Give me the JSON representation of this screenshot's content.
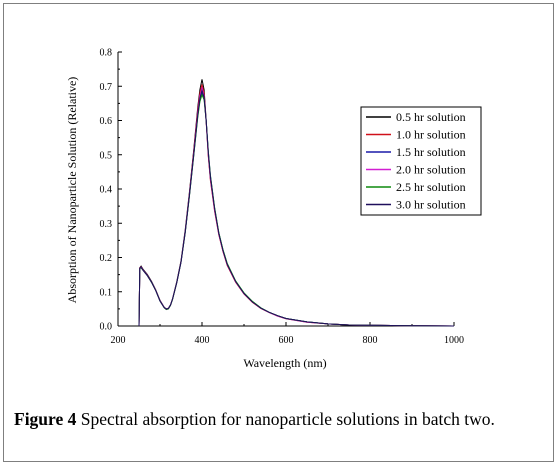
{
  "caption": {
    "label": "Figure 4",
    "text": "Spectral absorption for nanoparticle solutions in batch two."
  },
  "chart_data": {
    "type": "line",
    "title": "",
    "xlabel": "Wavelength (nm)",
    "ylabel": "Absorption of Nanoparticle Solution (Relative)",
    "xlim": [
      200,
      1000
    ],
    "ylim": [
      0.0,
      0.8
    ],
    "xticks": [
      200,
      400,
      600,
      800,
      1000
    ],
    "yticks": [
      0.0,
      0.1,
      0.2,
      0.3,
      0.4,
      0.5,
      0.6,
      0.7,
      0.8
    ],
    "ytick_labels": [
      "0.0",
      "0.1",
      "0.2",
      "0.3",
      "0.4",
      "0.5",
      "0.6",
      "0.7",
      "0.8"
    ],
    "legend_position": "right",
    "x": [
      250,
      252,
      255,
      260,
      270,
      280,
      290,
      300,
      310,
      315,
      320,
      325,
      330,
      340,
      350,
      360,
      370,
      380,
      390,
      395,
      400,
      405,
      410,
      415,
      420,
      430,
      440,
      450,
      460,
      480,
      500,
      520,
      540,
      560,
      580,
      600,
      650,
      700,
      750,
      800,
      900,
      1000
    ],
    "series": [
      {
        "name": "0.5 hr solution",
        "color": "#000000",
        "values": [
          0.0,
          0.17,
          0.175,
          0.165,
          0.15,
          0.13,
          0.105,
          0.075,
          0.055,
          0.05,
          0.052,
          0.062,
          0.08,
          0.13,
          0.19,
          0.28,
          0.39,
          0.51,
          0.64,
          0.69,
          0.72,
          0.69,
          0.6,
          0.5,
          0.43,
          0.34,
          0.27,
          0.22,
          0.18,
          0.13,
          0.095,
          0.07,
          0.052,
          0.04,
          0.03,
          0.022,
          0.012,
          0.006,
          0.003,
          0.002,
          0.001,
          0.0
        ]
      },
      {
        "name": "1.0 hr solution",
        "color": "#d0101a",
        "values": [
          0.0,
          0.17,
          0.172,
          0.163,
          0.148,
          0.128,
          0.104,
          0.074,
          0.054,
          0.049,
          0.051,
          0.061,
          0.079,
          0.128,
          0.188,
          0.276,
          0.385,
          0.505,
          0.632,
          0.68,
          0.705,
          0.68,
          0.595,
          0.495,
          0.425,
          0.335,
          0.266,
          0.217,
          0.177,
          0.128,
          0.093,
          0.069,
          0.051,
          0.039,
          0.029,
          0.021,
          0.011,
          0.006,
          0.003,
          0.002,
          0.001,
          0.0
        ]
      },
      {
        "name": "1.5 hr solution",
        "color": "#1a1aa8",
        "values": [
          0.0,
          0.168,
          0.171,
          0.162,
          0.147,
          0.127,
          0.103,
          0.073,
          0.054,
          0.049,
          0.051,
          0.061,
          0.079,
          0.127,
          0.186,
          0.273,
          0.38,
          0.495,
          0.615,
          0.66,
          0.68,
          0.665,
          0.6,
          0.51,
          0.44,
          0.345,
          0.272,
          0.222,
          0.182,
          0.131,
          0.096,
          0.071,
          0.053,
          0.04,
          0.03,
          0.022,
          0.012,
          0.006,
          0.003,
          0.002,
          0.001,
          0.0
        ]
      },
      {
        "name": "2.0 hr solution",
        "color": "#d21fd2",
        "values": [
          0.0,
          0.169,
          0.172,
          0.163,
          0.148,
          0.128,
          0.104,
          0.074,
          0.054,
          0.049,
          0.051,
          0.061,
          0.079,
          0.128,
          0.187,
          0.275,
          0.383,
          0.5,
          0.625,
          0.672,
          0.695,
          0.672,
          0.595,
          0.5,
          0.43,
          0.338,
          0.268,
          0.219,
          0.179,
          0.129,
          0.094,
          0.07,
          0.052,
          0.039,
          0.029,
          0.021,
          0.011,
          0.006,
          0.003,
          0.002,
          0.001,
          0.0
        ]
      },
      {
        "name": "2.5 hr solution",
        "color": "#0e8a0e",
        "values": [
          0.0,
          0.168,
          0.17,
          0.162,
          0.147,
          0.127,
          0.103,
          0.073,
          0.053,
          0.048,
          0.05,
          0.06,
          0.078,
          0.127,
          0.186,
          0.272,
          0.378,
          0.493,
          0.61,
          0.655,
          0.675,
          0.66,
          0.598,
          0.51,
          0.44,
          0.346,
          0.273,
          0.223,
          0.183,
          0.132,
          0.097,
          0.072,
          0.053,
          0.04,
          0.03,
          0.022,
          0.012,
          0.006,
          0.003,
          0.002,
          0.001,
          0.0
        ]
      },
      {
        "name": "3.0 hr solution",
        "color": "#1f0f5c",
        "values": [
          0.0,
          0.169,
          0.171,
          0.162,
          0.147,
          0.128,
          0.103,
          0.073,
          0.054,
          0.049,
          0.051,
          0.061,
          0.079,
          0.127,
          0.187,
          0.274,
          0.381,
          0.497,
          0.618,
          0.665,
          0.688,
          0.668,
          0.598,
          0.505,
          0.435,
          0.342,
          0.27,
          0.22,
          0.18,
          0.13,
          0.095,
          0.07,
          0.052,
          0.04,
          0.03,
          0.022,
          0.012,
          0.006,
          0.003,
          0.002,
          0.001,
          0.0
        ]
      }
    ]
  }
}
